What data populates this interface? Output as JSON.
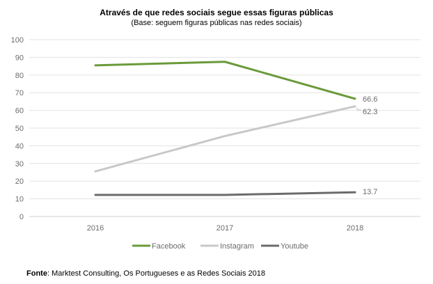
{
  "chart_data": {
    "type": "line",
    "title": "Através de que redes sociais segue essas figuras públicas",
    "subtitle": "(Base: seguem figuras públicas nas redes sociais)",
    "categories": [
      "2016",
      "2017",
      "2018"
    ],
    "ylim": [
      0,
      100
    ],
    "yticks": [
      0,
      10,
      20,
      30,
      40,
      50,
      60,
      70,
      80,
      90,
      100
    ],
    "grid": true,
    "legend_position": "bottom",
    "series": [
      {
        "name": "Facebook",
        "values": [
          85.5,
          87.5,
          66.6
        ],
        "color": "#6a9a3a",
        "end_label": "66.6"
      },
      {
        "name": "Instagram",
        "values": [
          25.5,
          45.5,
          62.3
        ],
        "color": "#c8c8c8",
        "end_label": "62.3"
      },
      {
        "name": "Youtube",
        "values": [
          12.2,
          12.2,
          13.7
        ],
        "color": "#6b6b6b",
        "end_label": "13.7"
      }
    ]
  },
  "source": {
    "label": "Fonte",
    "text": ": Marktest Consulting, Os Portugueses e as Redes Sociais 2018"
  }
}
